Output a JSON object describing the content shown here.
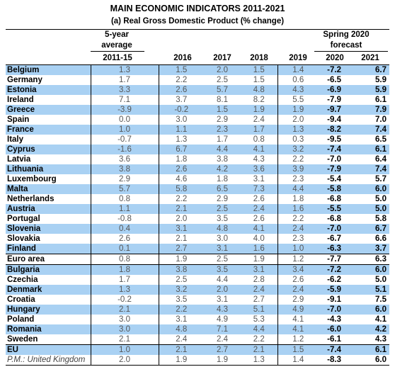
{
  "title": "MAIN ECONOMIC INDICATORS 2011-2021",
  "subtitle": "(a) Real Gross Domestic Product (% change)",
  "headers": {
    "avg_line1": "5-year",
    "avg_line2": "average",
    "forecast_line1": "Spring 2020",
    "forecast_line2": "forecast",
    "years": [
      "2011-15",
      "2016",
      "2017",
      "2018",
      "2019",
      "2020",
      "2021"
    ]
  },
  "rows": [
    {
      "name": "Belgium",
      "avg": "1.3",
      "y2016": "1.5",
      "y2017": "2.0",
      "y2018": "1.5",
      "y2019": "1.4",
      "y2020": "-7.2",
      "y2021": "6.7"
    },
    {
      "name": "Germany",
      "avg": "1.7",
      "y2016": "2.2",
      "y2017": "2.5",
      "y2018": "1.5",
      "y2019": "0.6",
      "y2020": "-6.5",
      "y2021": "5.9"
    },
    {
      "name": "Estonia",
      "avg": "3.3",
      "y2016": "2.6",
      "y2017": "5.7",
      "y2018": "4.8",
      "y2019": "4.3",
      "y2020": "-6.9",
      "y2021": "5.9"
    },
    {
      "name": "Ireland",
      "avg": "7.1",
      "y2016": "3.7",
      "y2017": "8.1",
      "y2018": "8.2",
      "y2019": "5.5",
      "y2020": "-7.9",
      "y2021": "6.1"
    },
    {
      "name": "Greece",
      "avg": "-3.9",
      "y2016": "-0.2",
      "y2017": "1.5",
      "y2018": "1.9",
      "y2019": "1.9",
      "y2020": "-9.7",
      "y2021": "7.9"
    },
    {
      "name": "Spain",
      "avg": "0.0",
      "y2016": "3.0",
      "y2017": "2.9",
      "y2018": "2.4",
      "y2019": "2.0",
      "y2020": "-9.4",
      "y2021": "7.0"
    },
    {
      "name": "France",
      "avg": "1.0",
      "y2016": "1.1",
      "y2017": "2.3",
      "y2018": "1.7",
      "y2019": "1.3",
      "y2020": "-8.2",
      "y2021": "7.4"
    },
    {
      "name": "Italy",
      "avg": "-0.7",
      "y2016": "1.3",
      "y2017": "1.7",
      "y2018": "0.8",
      "y2019": "0.3",
      "y2020": "-9.5",
      "y2021": "6.5"
    },
    {
      "name": "Cyprus",
      "avg": "-1.6",
      "y2016": "6.7",
      "y2017": "4.4",
      "y2018": "4.1",
      "y2019": "3.2",
      "y2020": "-7.4",
      "y2021": "6.1"
    },
    {
      "name": "Latvia",
      "avg": "3.6",
      "y2016": "1.8",
      "y2017": "3.8",
      "y2018": "4.3",
      "y2019": "2.2",
      "y2020": "-7.0",
      "y2021": "6.4"
    },
    {
      "name": "Lithuania",
      "avg": "3.8",
      "y2016": "2.6",
      "y2017": "4.2",
      "y2018": "3.6",
      "y2019": "3.9",
      "y2020": "-7.9",
      "y2021": "7.4"
    },
    {
      "name": "Luxembourg",
      "avg": "2.9",
      "y2016": "4.6",
      "y2017": "1.8",
      "y2018": "3.1",
      "y2019": "2.3",
      "y2020": "-5.4",
      "y2021": "5.7"
    },
    {
      "name": "Malta",
      "avg": "5.7",
      "y2016": "5.8",
      "y2017": "6.5",
      "y2018": "7.3",
      "y2019": "4.4",
      "y2020": "-5.8",
      "y2021": "6.0"
    },
    {
      "name": "Netherlands",
      "avg": "0.8",
      "y2016": "2.2",
      "y2017": "2.9",
      "y2018": "2.6",
      "y2019": "1.8",
      "y2020": "-6.8",
      "y2021": "5.0"
    },
    {
      "name": "Austria",
      "avg": "1.1",
      "y2016": "2.1",
      "y2017": "2.5",
      "y2018": "2.4",
      "y2019": "1.6",
      "y2020": "-5.5",
      "y2021": "5.0"
    },
    {
      "name": "Portugal",
      "avg": "-0.8",
      "y2016": "2.0",
      "y2017": "3.5",
      "y2018": "2.6",
      "y2019": "2.2",
      "y2020": "-6.8",
      "y2021": "5.8"
    },
    {
      "name": "Slovenia",
      "avg": "0.4",
      "y2016": "3.1",
      "y2017": "4.8",
      "y2018": "4.1",
      "y2019": "2.4",
      "y2020": "-7.0",
      "y2021": "6.7"
    },
    {
      "name": "Slovakia",
      "avg": "2.6",
      "y2016": "2.1",
      "y2017": "3.0",
      "y2018": "4.0",
      "y2019": "2.3",
      "y2020": "-6.7",
      "y2021": "6.6"
    },
    {
      "name": "Finland",
      "avg": "0.1",
      "y2016": "2.7",
      "y2017": "3.1",
      "y2018": "1.6",
      "y2019": "1.0",
      "y2020": "-6.3",
      "y2021": "3.7"
    },
    {
      "name": "Euro area",
      "avg": "0.8",
      "y2016": "1.9",
      "y2017": "2.5",
      "y2018": "1.9",
      "y2019": "1.2",
      "y2020": "-7.7",
      "y2021": "6.3"
    },
    {
      "name": "Bulgaria",
      "avg": "1.8",
      "y2016": "3.8",
      "y2017": "3.5",
      "y2018": "3.1",
      "y2019": "3.4",
      "y2020": "-7.2",
      "y2021": "6.0"
    },
    {
      "name": "Czechia",
      "avg": "1.7",
      "y2016": "2.5",
      "y2017": "4.4",
      "y2018": "2.8",
      "y2019": "2.6",
      "y2020": "-6.2",
      "y2021": "5.0"
    },
    {
      "name": "Denmark",
      "avg": "1.3",
      "y2016": "3.2",
      "y2017": "2.0",
      "y2018": "2.4",
      "y2019": "2.4",
      "y2020": "-5.9",
      "y2021": "5.1"
    },
    {
      "name": "Croatia",
      "avg": "-0.2",
      "y2016": "3.5",
      "y2017": "3.1",
      "y2018": "2.7",
      "y2019": "2.9",
      "y2020": "-9.1",
      "y2021": "7.5"
    },
    {
      "name": "Hungary",
      "avg": "2.1",
      "y2016": "2.2",
      "y2017": "4.3",
      "y2018": "5.1",
      "y2019": "4.9",
      "y2020": "-7.0",
      "y2021": "6.0"
    },
    {
      "name": "Poland",
      "avg": "3.0",
      "y2016": "3.1",
      "y2017": "4.9",
      "y2018": "5.3",
      "y2019": "4.1",
      "y2020": "-4.3",
      "y2021": "4.1"
    },
    {
      "name": "Romania",
      "avg": "3.0",
      "y2016": "4.8",
      "y2017": "7.1",
      "y2018": "4.4",
      "y2019": "4.1",
      "y2020": "-6.0",
      "y2021": "4.2"
    },
    {
      "name": "Sweden",
      "avg": "2.1",
      "y2016": "2.4",
      "y2017": "2.4",
      "y2018": "2.2",
      "y2019": "1.2",
      "y2020": "-6.1",
      "y2021": "4.3"
    },
    {
      "name": "EU",
      "avg": "1.0",
      "y2016": "2.1",
      "y2017": "2.7",
      "y2018": "2.1",
      "y2019": "1.5",
      "y2020": "-7.4",
      "y2021": "6.1"
    },
    {
      "name": "P.M.: United Kingdom",
      "avg": "2.0",
      "y2016": "1.9",
      "y2017": "1.9",
      "y2018": "1.3",
      "y2019": "1.4",
      "y2020": "-8.3",
      "y2021": "6.0"
    }
  ],
  "highlight_color": "#a9d1f3"
}
